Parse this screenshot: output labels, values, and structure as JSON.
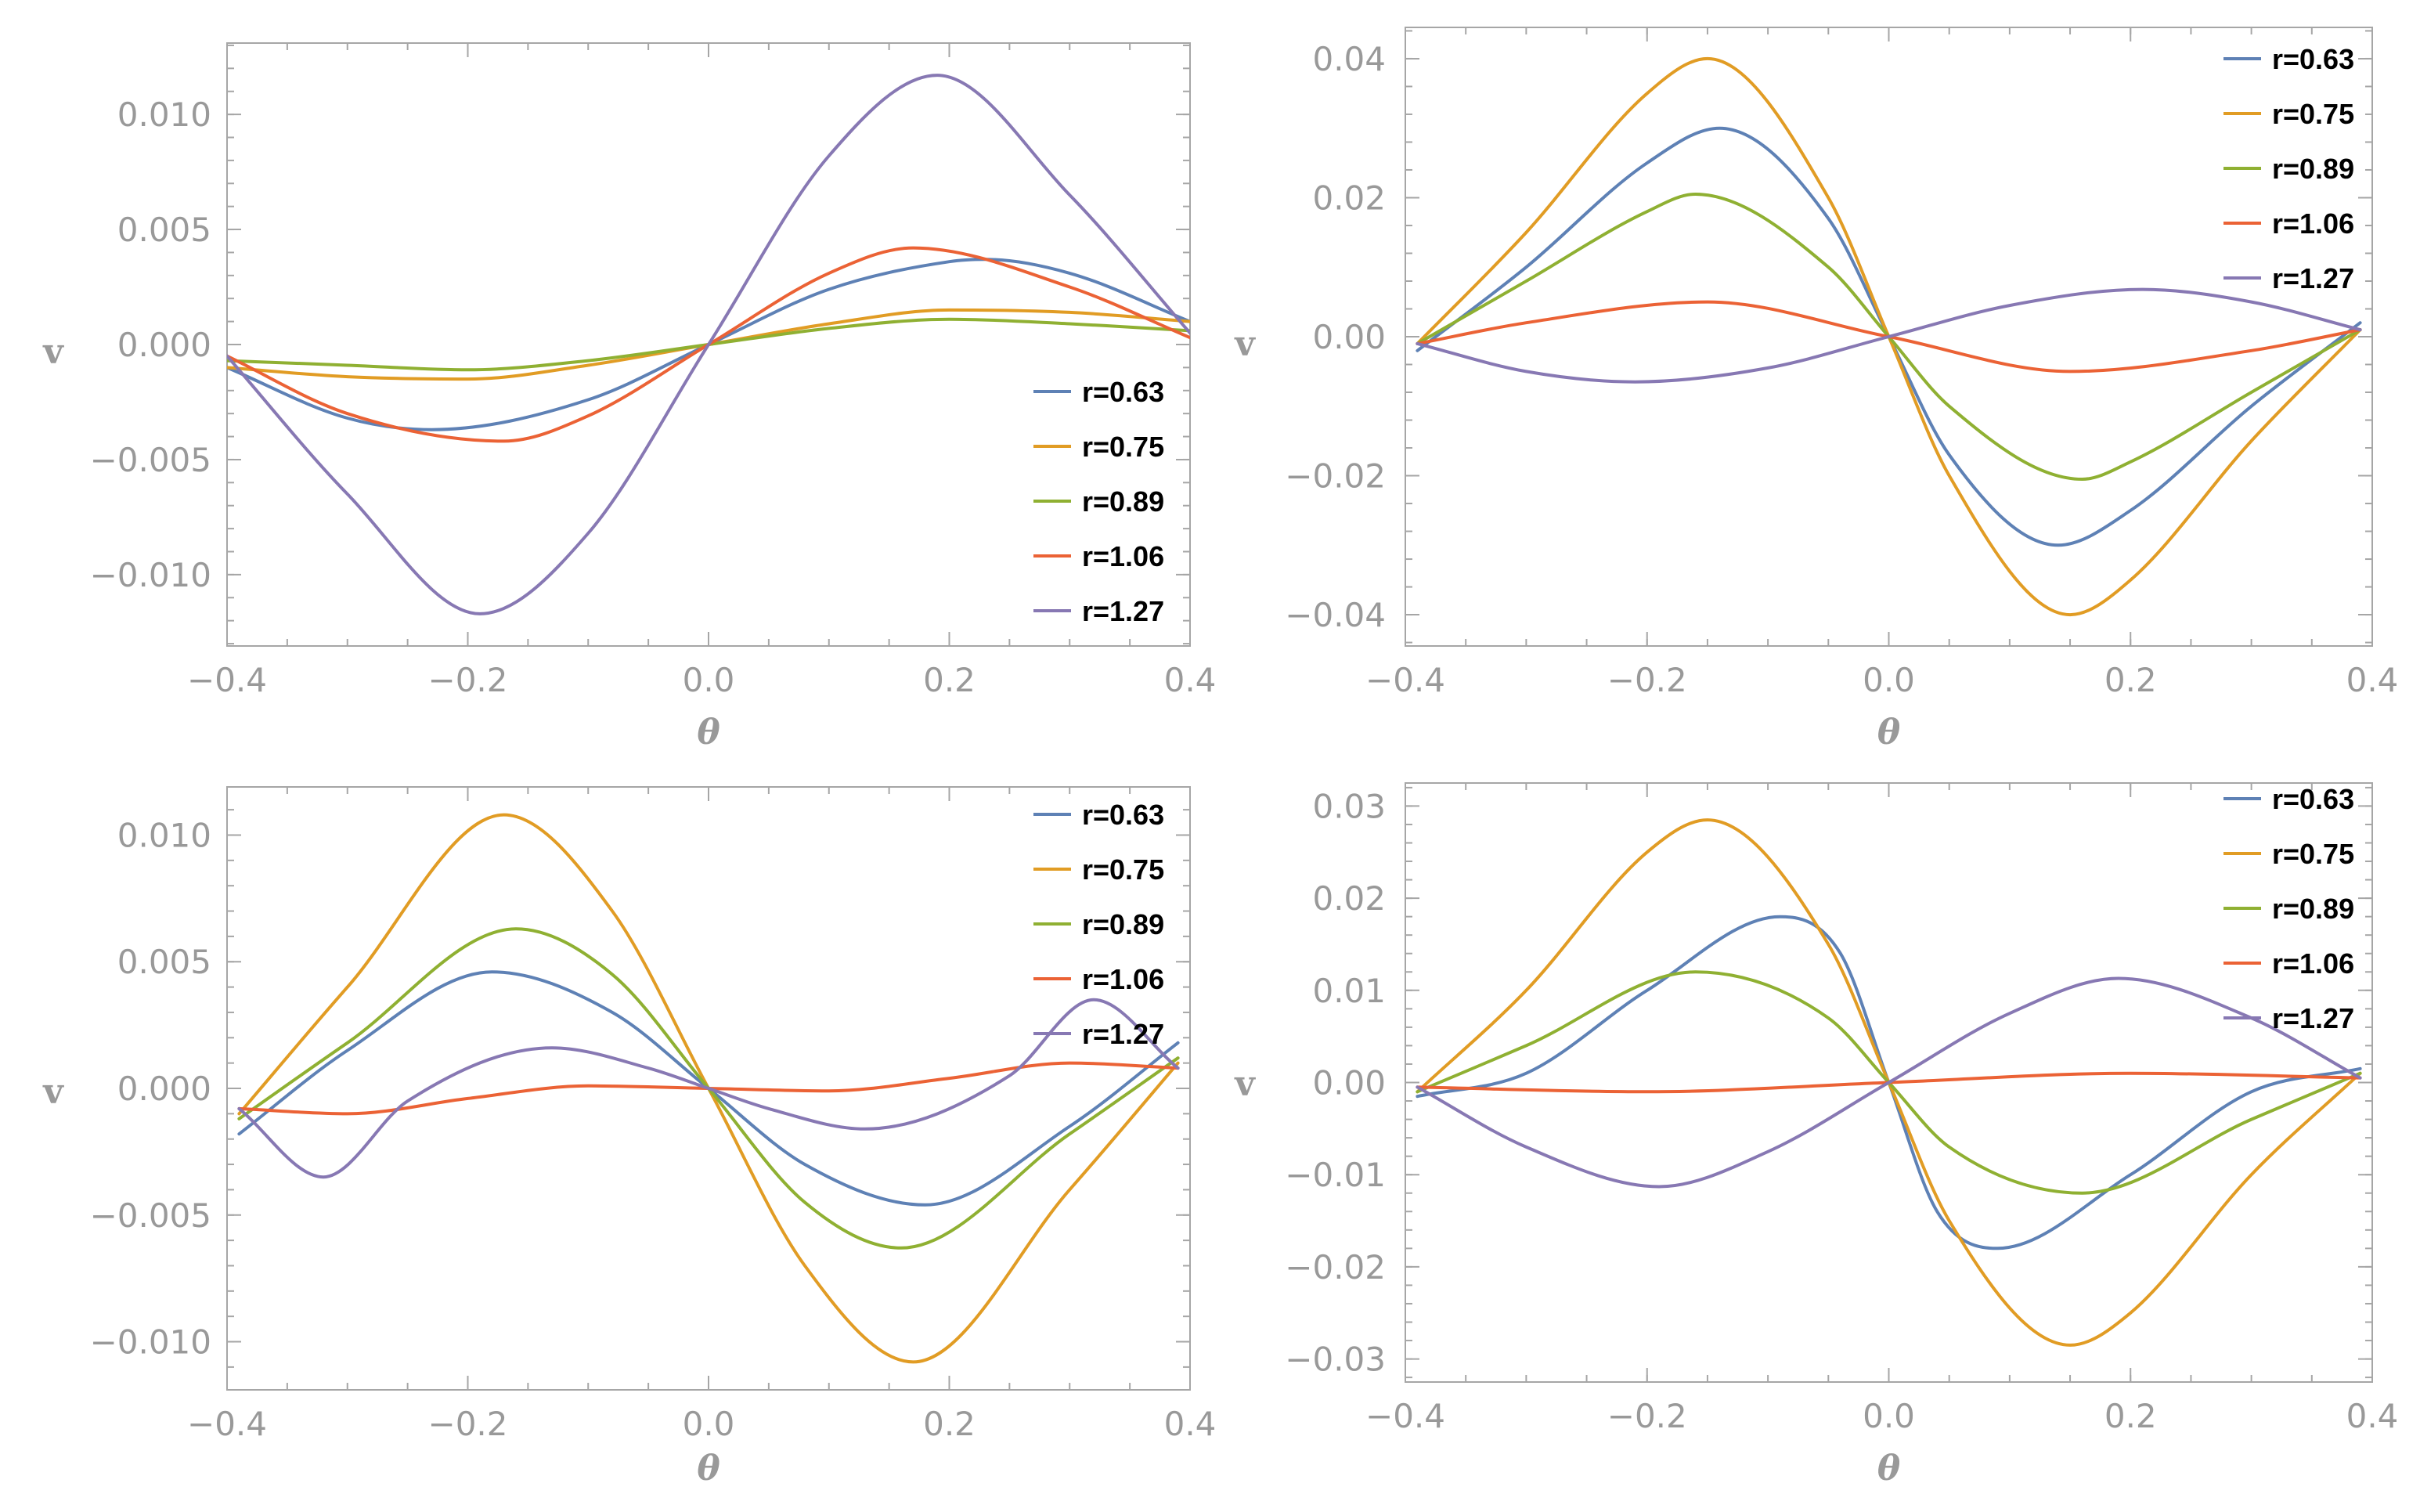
{
  "colors": {
    "r=0.63": "#5e81b5",
    "r=0.75": "#e19c24",
    "r=0.89": "#8fb032",
    "r=1.06": "#eb6235",
    "r=1.27": "#8778b3",
    "axis": "#999999",
    "frame": "#a6a6a6"
  },
  "chart_data": [
    {
      "type": "line",
      "panel": "top-left",
      "xlabel": "θ",
      "ylabel": "v",
      "xlim": [
        -0.4,
        0.4
      ],
      "ylim": [
        -0.0131,
        0.0131
      ],
      "xticks": [
        -0.4,
        -0.2,
        0.0,
        0.2,
        0.4
      ],
      "xtick_labels": [
        "−0.4",
        "−0.2",
        "0.0",
        "0.2",
        "0.4"
      ],
      "yticks": [
        -0.01,
        -0.005,
        0.0,
        0.005,
        0.01
      ],
      "ytick_labels": [
        "−0.010",
        "−0.005",
        "0.000",
        "0.005",
        "0.010"
      ],
      "legend_position": "bottom-right",
      "series": [
        {
          "name": "r=0.63",
          "x": [
            -0.4,
            -0.3,
            -0.23,
            -0.1,
            0.0,
            0.1,
            0.2,
            0.23,
            0.3,
            0.4
          ],
          "y": [
            -0.001,
            -0.0032,
            -0.0037,
            -0.0024,
            0.0,
            0.0024,
            0.0036,
            0.0037,
            0.0031,
            0.001
          ]
        },
        {
          "name": "r=0.75",
          "x": [
            -0.4,
            -0.3,
            -0.2,
            -0.1,
            0.0,
            0.1,
            0.2,
            0.3,
            0.4
          ],
          "y": [
            -0.001,
            -0.0014,
            -0.0015,
            -0.0009,
            0.0,
            0.0009,
            0.0015,
            0.0014,
            0.001
          ]
        },
        {
          "name": "r=0.89",
          "x": [
            -0.4,
            -0.3,
            -0.2,
            -0.1,
            0.0,
            0.1,
            0.2,
            0.3,
            0.4
          ],
          "y": [
            -0.0007,
            -0.0009,
            -0.0011,
            -0.0007,
            0.0,
            0.0007,
            0.0011,
            0.0009,
            0.0006
          ]
        },
        {
          "name": "r=1.06",
          "x": [
            -0.4,
            -0.3,
            -0.17,
            -0.1,
            0.0,
            0.1,
            0.17,
            0.3,
            0.4
          ],
          "y": [
            -0.0005,
            -0.003,
            -0.0042,
            -0.0031,
            0.0,
            0.0031,
            0.0042,
            0.0025,
            0.0003
          ]
        },
        {
          "name": "r=1.27",
          "x": [
            -0.4,
            -0.3,
            -0.19,
            -0.1,
            0.0,
            0.1,
            0.19,
            0.3,
            0.4
          ],
          "y": [
            -0.0005,
            -0.0065,
            -0.0117,
            -0.0082,
            0.0,
            0.0082,
            0.0117,
            0.0065,
            0.0005
          ]
        }
      ]
    },
    {
      "type": "line",
      "panel": "top-right",
      "xlabel": "θ",
      "ylabel": "v",
      "xlim": [
        -0.4,
        0.4
      ],
      "ylim": [
        -0.0445,
        0.0445
      ],
      "xticks": [
        -0.4,
        -0.2,
        0.0,
        0.2,
        0.4
      ],
      "xtick_labels": [
        "−0.4",
        "−0.2",
        "0.0",
        "0.2",
        "0.4"
      ],
      "yticks": [
        -0.04,
        -0.02,
        0.0,
        0.02,
        0.04
      ],
      "ytick_labels": [
        "−0.04",
        "−0.02",
        "0.00",
        "0.02",
        "0.04"
      ],
      "legend_position": "top-right",
      "series": [
        {
          "name": "r=0.63",
          "x": [
            -0.39,
            -0.3,
            -0.2,
            -0.14,
            -0.05,
            0.0,
            0.05,
            0.14,
            0.2,
            0.3,
            0.39
          ],
          "y": [
            -0.002,
            0.01,
            0.025,
            0.03,
            0.017,
            0.0,
            -0.017,
            -0.03,
            -0.025,
            -0.01,
            0.002
          ]
        },
        {
          "name": "r=0.75",
          "x": [
            -0.39,
            -0.3,
            -0.2,
            -0.15,
            -0.05,
            0.0,
            0.05,
            0.15,
            0.2,
            0.3,
            0.39
          ],
          "y": [
            -0.001,
            0.015,
            0.035,
            0.04,
            0.02,
            0.0,
            -0.02,
            -0.04,
            -0.035,
            -0.015,
            0.001
          ]
        },
        {
          "name": "r=0.89",
          "x": [
            -0.39,
            -0.3,
            -0.2,
            -0.16,
            -0.05,
            0.0,
            0.05,
            0.16,
            0.2,
            0.3,
            0.39
          ],
          "y": [
            -0.001,
            0.008,
            0.018,
            0.0205,
            0.01,
            0.0,
            -0.01,
            -0.0205,
            -0.018,
            -0.008,
            0.001
          ]
        },
        {
          "name": "r=1.06",
          "x": [
            -0.39,
            -0.3,
            -0.15,
            0.0,
            0.15,
            0.3,
            0.39
          ],
          "y": [
            -0.001,
            0.002,
            0.005,
            0.0,
            -0.005,
            -0.002,
            0.001
          ]
        },
        {
          "name": "r=1.27",
          "x": [
            -0.39,
            -0.3,
            -0.21,
            -0.1,
            0.0,
            0.1,
            0.21,
            0.3,
            0.39
          ],
          "y": [
            -0.001,
            -0.005,
            -0.0065,
            -0.0045,
            0.0,
            0.0045,
            0.0068,
            0.005,
            0.001
          ]
        }
      ]
    },
    {
      "type": "line",
      "panel": "bottom-left",
      "xlabel": "θ",
      "ylabel": "v",
      "xlim": [
        -0.4,
        0.4
      ],
      "ylim": [
        -0.0119,
        0.0119
      ],
      "xticks": [
        -0.4,
        -0.2,
        0.0,
        0.2,
        0.4
      ],
      "xtick_labels": [
        "−0.4",
        "−0.2",
        "0.0",
        "0.2",
        "0.4"
      ],
      "yticks": [
        -0.01,
        -0.005,
        0.0,
        0.005,
        0.01
      ],
      "ytick_labels": [
        "−0.010",
        "−0.005",
        "0.000",
        "0.005",
        "0.010"
      ],
      "legend_position": "top-right",
      "series": [
        {
          "name": "r=0.63",
          "x": [
            -0.39,
            -0.3,
            -0.18,
            -0.08,
            0.0,
            0.08,
            0.18,
            0.3,
            0.39
          ],
          "y": [
            -0.0018,
            0.0015,
            0.0046,
            0.003,
            0.0,
            -0.003,
            -0.0046,
            -0.0015,
            0.0018
          ]
        },
        {
          "name": "r=0.75",
          "x": [
            -0.39,
            -0.3,
            -0.17,
            -0.08,
            0.0,
            0.08,
            0.17,
            0.3,
            0.39
          ],
          "y": [
            -0.001,
            0.004,
            0.0108,
            0.007,
            0.0,
            -0.007,
            -0.0108,
            -0.004,
            0.001
          ]
        },
        {
          "name": "r=0.89",
          "x": [
            -0.39,
            -0.3,
            -0.16,
            -0.08,
            0.0,
            0.08,
            0.16,
            0.3,
            0.39
          ],
          "y": [
            -0.0012,
            0.0018,
            0.0063,
            0.0045,
            0.0,
            -0.0045,
            -0.0063,
            -0.0018,
            0.0012
          ]
        },
        {
          "name": "r=1.06",
          "x": [
            -0.39,
            -0.3,
            -0.2,
            -0.1,
            0.0,
            0.1,
            0.2,
            0.3,
            0.39
          ],
          "y": [
            -0.0008,
            -0.001,
            -0.0004,
            0.0001,
            0.0,
            -0.0001,
            0.0004,
            0.001,
            0.0008
          ]
        },
        {
          "name": "r=1.27",
          "x": [
            -0.39,
            -0.32,
            -0.25,
            -0.13,
            -0.05,
            0.0,
            0.05,
            0.13,
            0.25,
            0.32,
            0.39
          ],
          "y": [
            -0.0008,
            -0.0035,
            -0.0005,
            0.0016,
            0.0008,
            0.0,
            -0.0008,
            -0.0016,
            0.0005,
            0.0035,
            0.0008
          ]
        }
      ]
    },
    {
      "type": "line",
      "panel": "bottom-right",
      "xlabel": "θ",
      "ylabel": "v",
      "xlim": [
        -0.4,
        0.4
      ],
      "ylim": [
        -0.0325,
        0.0325
      ],
      "xticks": [
        -0.4,
        -0.2,
        0.0,
        0.2,
        0.4
      ],
      "xtick_labels": [
        "−0.4",
        "−0.2",
        "0.0",
        "0.2",
        "0.4"
      ],
      "yticks": [
        -0.03,
        -0.02,
        -0.01,
        0.0,
        0.01,
        0.02,
        0.03
      ],
      "ytick_labels": [
        "−0.03",
        "−0.02",
        "−0.01",
        "0.00",
        "0.01",
        "0.02",
        "0.03"
      ],
      "legend_position": "top-right",
      "series": [
        {
          "name": "r=0.63",
          "x": [
            -0.39,
            -0.3,
            -0.2,
            -0.09,
            -0.04,
            0.0,
            0.04,
            0.09,
            0.2,
            0.3,
            0.39
          ],
          "y": [
            -0.0015,
            0.001,
            0.01,
            0.018,
            0.014,
            0.0,
            -0.014,
            -0.018,
            -0.01,
            -0.001,
            0.0015
          ]
        },
        {
          "name": "r=0.75",
          "x": [
            -0.39,
            -0.3,
            -0.2,
            -0.15,
            -0.05,
            0.0,
            0.05,
            0.15,
            0.2,
            0.3,
            0.39
          ],
          "y": [
            -0.001,
            0.01,
            0.025,
            0.0285,
            0.015,
            0.0,
            -0.015,
            -0.0285,
            -0.025,
            -0.01,
            0.001
          ]
        },
        {
          "name": "r=0.89",
          "x": [
            -0.39,
            -0.3,
            -0.16,
            -0.05,
            0.0,
            0.05,
            0.16,
            0.3,
            0.39
          ],
          "y": [
            -0.001,
            0.004,
            0.012,
            0.007,
            0.0,
            -0.007,
            -0.012,
            -0.004,
            0.001
          ]
        },
        {
          "name": "r=1.06",
          "x": [
            -0.39,
            -0.2,
            0.0,
            0.2,
            0.39
          ],
          "y": [
            -0.0005,
            -0.001,
            0.0,
            0.001,
            0.0005
          ]
        },
        {
          "name": "r=1.27",
          "x": [
            -0.39,
            -0.3,
            -0.19,
            -0.1,
            0.0,
            0.1,
            0.19,
            0.3,
            0.39
          ],
          "y": [
            -0.0005,
            -0.007,
            -0.0113,
            -0.0075,
            0.0,
            0.0075,
            0.0113,
            0.007,
            0.0005
          ]
        }
      ]
    }
  ]
}
